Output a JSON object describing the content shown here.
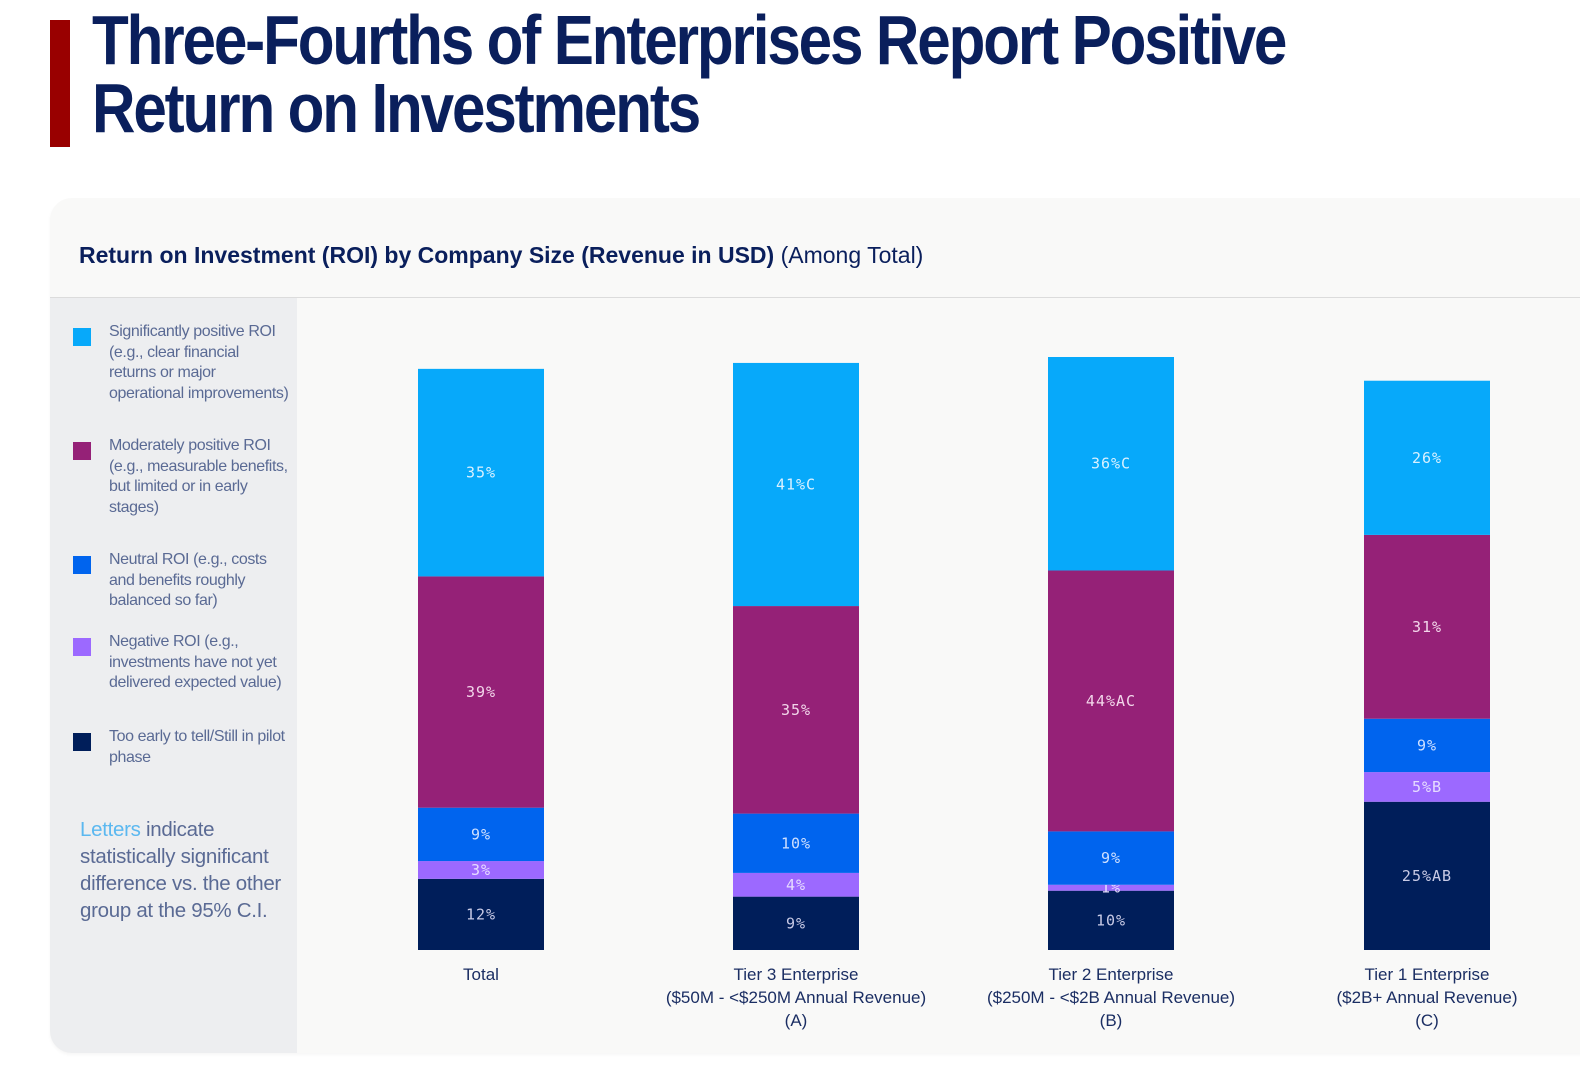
{
  "page": {
    "title_lines": [
      "Three-Fourths of Enterprises Report Positive",
      "Return on Investments"
    ],
    "accent_color": "#990000"
  },
  "chart_data": {
    "type": "bar",
    "stacked": true,
    "title": "Return on Investment (ROI) by Company Size (Revenue in USD)",
    "subtitle": "(Among Total)",
    "xlabel": "",
    "ylabel": "",
    "ylim": [
      0,
      100
    ],
    "grid": false,
    "legend_position": "left",
    "categories": [
      [
        "Total"
      ],
      [
        "Tier 3 Enterprise",
        "($50M - <$250M Annual Revenue)",
        "(A)"
      ],
      [
        "Tier 2 Enterprise",
        "($250M - <$2B Annual Revenue)",
        "(B)"
      ],
      [
        "Tier 1 Enterprise",
        "($2B+ Annual Revenue)",
        "(C)"
      ]
    ],
    "series": [
      {
        "name": "Too early to tell/Still in pilot phase",
        "color": "#001e5a",
        "label_color": "#c9cbe6",
        "values": [
          12,
          9,
          10,
          25
        ],
        "sig_letters": [
          "",
          "",
          "",
          "AB"
        ]
      },
      {
        "name": "Negative ROI (e.g., investments have not yet delivered expected value)",
        "color": "#9c69ff",
        "label_color": "#e6dcff",
        "values": [
          3,
          4,
          1,
          5
        ],
        "sig_letters": [
          "",
          "",
          "",
          "B"
        ]
      },
      {
        "name": "Neutral ROI (e.g., costs and benefits roughly balanced so far)",
        "color": "#0064ee",
        "label_color": "#cfe0ff",
        "values": [
          9,
          10,
          9,
          9
        ],
        "sig_letters": [
          "",
          "",
          "",
          ""
        ]
      },
      {
        "name": "Moderately positive ROI (e.g., measurable benefits, but limited or in early stages)",
        "color": "#952177",
        "label_color": "#f2d6ea",
        "values": [
          39,
          35,
          44,
          31
        ],
        "sig_letters": [
          "",
          "",
          "AC",
          ""
        ]
      },
      {
        "name": "Significantly positive ROI (e.g., clear financial returns or major operational improvements)",
        "color": "#07a9fa",
        "label_color": "#d9f1ff",
        "values": [
          35,
          41,
          36,
          26
        ],
        "sig_letters": [
          "",
          "C",
          "C",
          ""
        ]
      }
    ]
  },
  "legend": {
    "items": [
      {
        "label": "Significantly positive ROI (e.g., clear financial returns or major operational improvements)",
        "color": "#07a9fa"
      },
      {
        "label": "Moderately positive ROI (e.g., measurable benefits, but limited or in early stages)",
        "color": "#952177"
      },
      {
        "label": "Neutral ROI (e.g., costs and benefits roughly balanced so far)",
        "color": "#0064ee"
      },
      {
        "label": "Negative ROI (e.g., investments have not yet delivered expected value)",
        "color": "#9c69ff"
      },
      {
        "label": "Too early to tell/Still in pilot phase",
        "color": "#001e5a"
      }
    ],
    "note_accent": "Letters",
    "note_rest": " indicate statistically significant difference vs. the other group at the 95% C.I."
  }
}
